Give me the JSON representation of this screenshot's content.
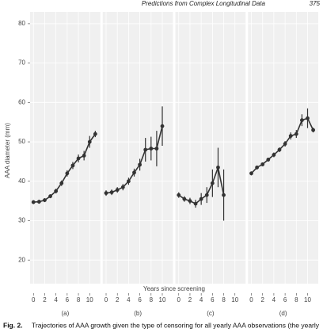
{
  "header": {
    "title": "Predictions from Complex Longitudinal Data",
    "page": "375"
  },
  "chart_data": {
    "type": "line",
    "ylabel": "AAA diameter (mm)",
    "xlabel": "Years since screening",
    "ylim": [
      14,
      83
    ],
    "yticks": [
      20,
      30,
      40,
      50,
      60,
      70,
      80
    ],
    "xlim": [
      -0.6,
      11.9
    ],
    "xticks": [
      0,
      2,
      4,
      6,
      8,
      10
    ],
    "color": "#333333",
    "grid": true,
    "panels": [
      {
        "label": "(a)",
        "x": [
          0,
          1,
          2,
          3,
          4,
          5,
          6,
          7,
          8,
          9,
          10,
          11
        ],
        "values": [
          34.7,
          34.8,
          35.2,
          36.2,
          37.5,
          39.5,
          42,
          44,
          45.8,
          46.5,
          50,
          52
        ],
        "errors": [
          0.5,
          0.5,
          0.5,
          0.5,
          0.6,
          0.7,
          0.8,
          0.9,
          1,
          1.2,
          1.5,
          0.8
        ]
      },
      {
        "label": "(b)",
        "x": [
          0,
          1,
          2,
          3,
          4,
          5,
          6,
          7,
          8,
          9,
          10
        ],
        "values": [
          37,
          37.2,
          37.8,
          38.5,
          40,
          42.2,
          44.2,
          48,
          48.3,
          48.3,
          54
        ],
        "errors": [
          0.7,
          0.7,
          0.7,
          0.8,
          0.9,
          1,
          1.5,
          3,
          3,
          4.5,
          5
        ]
      },
      {
        "label": "(c)",
        "x": [
          0,
          1,
          2,
          3,
          4,
          5,
          6,
          7,
          8
        ],
        "values": [
          36.5,
          35.5,
          35,
          34.3,
          35.5,
          36.5,
          39.5,
          43.5,
          36.5
        ],
        "errors": [
          0.7,
          0.7,
          0.8,
          1,
          1.5,
          2,
          3.5,
          5,
          6.5
        ]
      },
      {
        "label": "(d)",
        "x": [
          0,
          1,
          2,
          3,
          4,
          5,
          6,
          7,
          8,
          9,
          10,
          11
        ],
        "values": [
          42,
          43.5,
          44.3,
          45.5,
          46.7,
          48,
          49.5,
          51.5,
          52,
          55.5,
          56,
          53
        ],
        "errors": [
          0.5,
          0.5,
          0.5,
          0.5,
          0.6,
          0.6,
          0.7,
          0.9,
          1,
          1.5,
          2.5,
          0.6
        ]
      }
    ]
  },
  "caption": {
    "label": "Fig. 2.",
    "text": "Trajectories of AAA growth given the type of censoring for all yearly AAA observations (the yearly"
  }
}
